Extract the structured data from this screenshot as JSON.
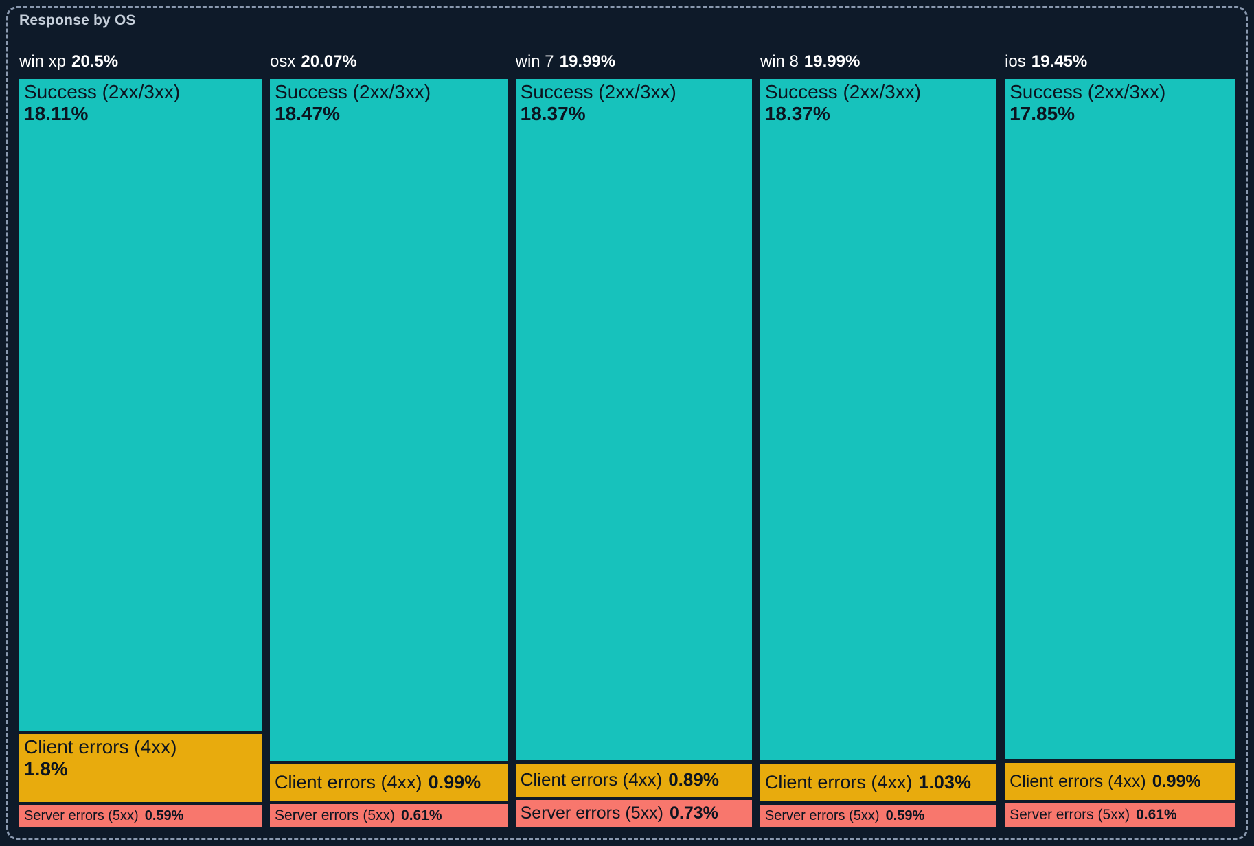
{
  "panel": {
    "title": "Response by OS"
  },
  "colors": {
    "background": "#0e1a29",
    "border": "#8a99af",
    "title_text": "#c6cfda",
    "header_text": "#ffffff",
    "segment_text": "#0c1420",
    "success": "#17c2bc",
    "client_errors": "#e8ab0d",
    "server_errors": "#f8776d"
  },
  "chart_data": {
    "type": "treemap",
    "title": "Response by OS",
    "orientation": "columns",
    "unit": "%",
    "legend": "none",
    "columns": [
      {
        "os": "win xp",
        "total": 20.5,
        "total_label": "20.5%",
        "segments": [
          {
            "label": "Success (2xx/3xx)",
            "value": 18.11,
            "value_label": "18.11%",
            "category": "success",
            "text_layout": "stacked"
          },
          {
            "label": "Client errors (4xx)",
            "value": 1.8,
            "value_label": "1.8%",
            "category": "client_errors",
            "text_layout": "stacked"
          },
          {
            "label": "Server errors (5xx)",
            "value": 0.59,
            "value_label": "0.59%",
            "category": "server_errors",
            "text_layout": "inline"
          }
        ]
      },
      {
        "os": "osx",
        "total": 20.07,
        "total_label": "20.07%",
        "segments": [
          {
            "label": "Success (2xx/3xx)",
            "value": 18.47,
            "value_label": "18.47%",
            "category": "success",
            "text_layout": "stacked"
          },
          {
            "label": "Client errors (4xx)",
            "value": 0.99,
            "value_label": "0.99%",
            "category": "client_errors",
            "text_layout": "inline"
          },
          {
            "label": "Server errors (5xx)",
            "value": 0.61,
            "value_label": "0.61%",
            "category": "server_errors",
            "text_layout": "inline"
          }
        ]
      },
      {
        "os": "win 7",
        "total": 19.99,
        "total_label": "19.99%",
        "segments": [
          {
            "label": "Success (2xx/3xx)",
            "value": 18.37,
            "value_label": "18.37%",
            "category": "success",
            "text_layout": "stacked"
          },
          {
            "label": "Client errors (4xx)",
            "value": 0.89,
            "value_label": "0.89%",
            "category": "client_errors",
            "text_layout": "inline"
          },
          {
            "label": "Server errors (5xx)",
            "value": 0.73,
            "value_label": "0.73%",
            "category": "server_errors",
            "text_layout": "inline"
          }
        ]
      },
      {
        "os": "win 8",
        "total": 19.99,
        "total_label": "19.99%",
        "segments": [
          {
            "label": "Success (2xx/3xx)",
            "value": 18.37,
            "value_label": "18.37%",
            "category": "success",
            "text_layout": "stacked"
          },
          {
            "label": "Client errors (4xx)",
            "value": 1.03,
            "value_label": "1.03%",
            "category": "client_errors",
            "text_layout": "inline"
          },
          {
            "label": "Server errors (5xx)",
            "value": 0.59,
            "value_label": "0.59%",
            "category": "server_errors",
            "text_layout": "inline"
          }
        ]
      },
      {
        "os": "ios",
        "total": 19.45,
        "total_label": "19.45%",
        "segments": [
          {
            "label": "Success (2xx/3xx)",
            "value": 17.85,
            "value_label": "17.85%",
            "category": "success",
            "text_layout": "stacked"
          },
          {
            "label": "Client errors (4xx)",
            "value": 0.99,
            "value_label": "0.99%",
            "category": "client_errors",
            "text_layout": "inline"
          },
          {
            "label": "Server errors (5xx)",
            "value": 0.61,
            "value_label": "0.61%",
            "category": "server_errors",
            "text_layout": "inline"
          }
        ]
      }
    ]
  }
}
